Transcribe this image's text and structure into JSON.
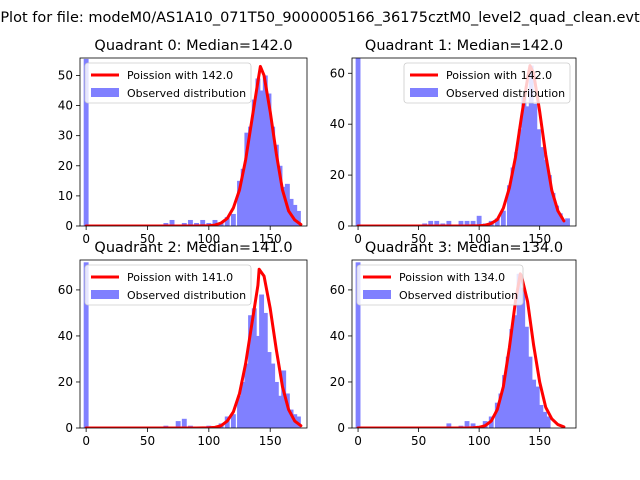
{
  "figure_title": "Plot for file: modeM0/AS1A10_071T50_9000005166_36175cztM0_level2_quad_clean.evt",
  "colors": {
    "model": "#ff0000",
    "observed": "#8080ff",
    "axis": "#000000"
  },
  "chart_data": [
    {
      "type": "bar",
      "title": "Quadrant 0: Median=142.0",
      "xlim": [
        -5,
        180
      ],
      "ylim": [
        0,
        55.8
      ],
      "xticks": [
        0,
        50,
        100,
        150
      ],
      "yticks": [
        0,
        10,
        20,
        30,
        40,
        50
      ],
      "legend": {
        "model_label": "Poission with 142.0",
        "observed_label": "Observed distribution",
        "position": "upper-left"
      },
      "bin_width": 4,
      "bins": [
        [
          0,
          55.5
        ],
        [
          65,
          1
        ],
        [
          70,
          2
        ],
        [
          80,
          1
        ],
        [
          85,
          2
        ],
        [
          90,
          1
        ],
        [
          95,
          2
        ],
        [
          100,
          1
        ],
        [
          105,
          2
        ],
        [
          110,
          1
        ],
        [
          115,
          3
        ],
        [
          120,
          4
        ],
        [
          125,
          15
        ],
        [
          128,
          19
        ],
        [
          131,
          31
        ],
        [
          134,
          33
        ],
        [
          137,
          42
        ],
        [
          140,
          49
        ],
        [
          143,
          45
        ],
        [
          146,
          50
        ],
        [
          149,
          44
        ],
        [
          152,
          33
        ],
        [
          155,
          27
        ],
        [
          158,
          20
        ],
        [
          161,
          13
        ],
        [
          164,
          14
        ],
        [
          167,
          9
        ],
        [
          170,
          7
        ],
        [
          173,
          5
        ]
      ],
      "model_x": [
        0,
        30,
        60,
        90,
        100,
        105,
        110,
        115,
        120,
        125,
        130,
        135,
        140,
        142,
        145,
        150,
        155,
        160,
        165,
        170,
        175
      ],
      "model_y": [
        0,
        0,
        0,
        0,
        0.1,
        0.3,
        1,
        2.5,
        6,
        12,
        22,
        35,
        48,
        53,
        50,
        38,
        24,
        12,
        5,
        2,
        0.5
      ]
    },
    {
      "type": "bar",
      "title": "Quadrant 1: Median=142.0",
      "xlim": [
        -5,
        180
      ],
      "ylim": [
        0,
        66
      ],
      "xticks": [
        0,
        50,
        100,
        150
      ],
      "yticks": [
        0,
        20,
        40,
        60
      ],
      "legend": {
        "model_label": "Poission with 142.0",
        "observed_label": "Observed distribution",
        "position": "upper-right"
      },
      "bin_width": 4,
      "bins": [
        [
          0,
          66
        ],
        [
          55,
          1
        ],
        [
          60,
          2
        ],
        [
          65,
          2
        ],
        [
          70,
          1
        ],
        [
          75,
          2
        ],
        [
          85,
          2
        ],
        [
          90,
          2
        ],
        [
          95,
          2
        ],
        [
          100,
          4
        ],
        [
          105,
          1
        ],
        [
          110,
          2
        ],
        [
          115,
          3
        ],
        [
          120,
          6
        ],
        [
          125,
          16
        ],
        [
          128,
          23
        ],
        [
          131,
          29
        ],
        [
          134,
          38
        ],
        [
          137,
          51
        ],
        [
          140,
          47
        ],
        [
          143,
          63
        ],
        [
          146,
          48
        ],
        [
          149,
          38
        ],
        [
          152,
          31
        ],
        [
          155,
          26
        ],
        [
          158,
          20
        ],
        [
          161,
          13
        ],
        [
          164,
          8
        ],
        [
          167,
          5
        ],
        [
          170,
          2
        ],
        [
          173,
          3
        ]
      ],
      "model_x": [
        0,
        30,
        60,
        90,
        100,
        105,
        110,
        115,
        120,
        125,
        130,
        135,
        140,
        142,
        145,
        150,
        155,
        160,
        165,
        170
      ],
      "model_y": [
        0,
        0,
        0,
        0,
        0.1,
        0.3,
        1,
        2.5,
        7,
        15,
        27,
        43,
        58,
        63,
        60,
        45,
        28,
        14,
        6,
        2
      ]
    },
    {
      "type": "bar",
      "title": "Quadrant 2: Median=141.0",
      "xlim": [
        -5,
        180
      ],
      "ylim": [
        0,
        73
      ],
      "xticks": [
        0,
        50,
        100,
        150
      ],
      "yticks": [
        0,
        20,
        40,
        60
      ],
      "legend": {
        "model_label": "Poission with 141.0",
        "observed_label": "Observed distribution",
        "position": "upper-left"
      },
      "bin_width": 4,
      "bins": [
        [
          0,
          72
        ],
        [
          65,
          1
        ],
        [
          75,
          3
        ],
        [
          80,
          4
        ],
        [
          85,
          1
        ],
        [
          100,
          1
        ],
        [
          110,
          2
        ],
        [
          115,
          5
        ],
        [
          120,
          6
        ],
        [
          125,
          14
        ],
        [
          128,
          20
        ],
        [
          131,
          28
        ],
        [
          134,
          49
        ],
        [
          137,
          52
        ],
        [
          140,
          40
        ],
        [
          143,
          58
        ],
        [
          146,
          50
        ],
        [
          149,
          33
        ],
        [
          152,
          28
        ],
        [
          155,
          20
        ],
        [
          158,
          14
        ],
        [
          161,
          25
        ],
        [
          164,
          15
        ],
        [
          167,
          8
        ],
        [
          170,
          6
        ],
        [
          173,
          5
        ]
      ],
      "model_x": [
        0,
        30,
        60,
        90,
        100,
        105,
        110,
        115,
        120,
        125,
        130,
        135,
        140,
        141,
        145,
        150,
        155,
        160,
        165,
        170,
        175
      ],
      "model_y": [
        0,
        0,
        0,
        0,
        0.1,
        0.3,
        1,
        3,
        7,
        15,
        28,
        45,
        62,
        69,
        66,
        52,
        34,
        18,
        8,
        3,
        1
      ]
    },
    {
      "type": "bar",
      "title": "Quadrant 3: Median=134.0",
      "xlim": [
        -5,
        180
      ],
      "ylim": [
        0,
        73
      ],
      "xticks": [
        0,
        50,
        100,
        150
      ],
      "yticks": [
        0,
        20,
        40,
        60
      ],
      "legend": {
        "model_label": "Poission with 134.0",
        "observed_label": "Observed distribution",
        "position": "upper-left"
      },
      "bin_width": 4,
      "bins": [
        [
          0,
          72
        ],
        [
          75,
          2
        ],
        [
          85,
          1
        ],
        [
          90,
          3
        ],
        [
          95,
          2
        ],
        [
          100,
          1
        ],
        [
          105,
          3
        ],
        [
          110,
          5
        ],
        [
          115,
          11
        ],
        [
          118,
          15
        ],
        [
          121,
          23
        ],
        [
          124,
          31
        ],
        [
          127,
          43
        ],
        [
          130,
          49
        ],
        [
          133,
          67
        ],
        [
          136,
          61
        ],
        [
          139,
          44
        ],
        [
          142,
          31
        ],
        [
          145,
          21
        ],
        [
          148,
          18
        ],
        [
          151,
          10
        ],
        [
          154,
          7
        ],
        [
          157,
          5
        ]
      ],
      "model_x": [
        0,
        30,
        60,
        90,
        95,
        100,
        105,
        110,
        115,
        120,
        125,
        130,
        134,
        135,
        140,
        145,
        150,
        155,
        160,
        165,
        170
      ],
      "model_y": [
        0,
        0,
        0,
        0,
        0.1,
        0.3,
        1,
        3,
        8,
        18,
        35,
        55,
        67,
        66,
        55,
        36,
        20,
        9,
        4,
        1.5,
        0.5
      ]
    }
  ]
}
